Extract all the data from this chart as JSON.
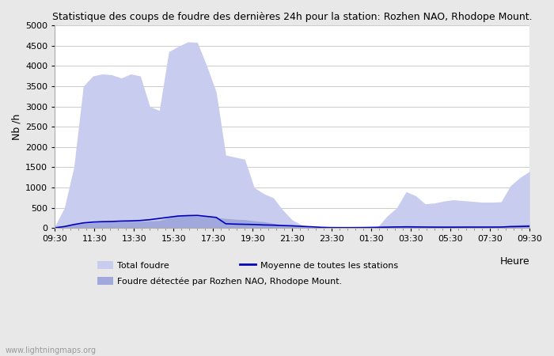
{
  "title": "Statistique des coups de foudre des dernières 24h pour la station: Rozhen NAO, Rhodope Mount.",
  "ylabel": "Nb /h",
  "xlabel_right": "Heure",
  "watermark": "www.lightningmaps.org",
  "ylim": [
    0,
    5000
  ],
  "yticks": [
    0,
    500,
    1000,
    1500,
    2000,
    2500,
    3000,
    3500,
    4000,
    4500,
    5000
  ],
  "xtick_labels": [
    "09:30",
    "11:30",
    "13:30",
    "15:30",
    "17:30",
    "19:30",
    "21:30",
    "23:30",
    "01:30",
    "03:30",
    "05:30",
    "07:30",
    "09:30"
  ],
  "bg_color": "#e8e8e8",
  "plot_bg_color": "#ffffff",
  "total_fill_color": "#c8ccee",
  "detected_fill_color": "#a0a8dc",
  "line_color": "#0000bb",
  "legend_total": "Total foudre",
  "legend_line": "Moyenne de toutes les stations",
  "legend_detected": "Foudre détectée par Rozhen NAO, Rhodope Mount.",
  "total_foudre": [
    50,
    500,
    1500,
    3500,
    3750,
    3800,
    3780,
    3700,
    3800,
    3750,
    3000,
    2900,
    4350,
    4480,
    4590,
    4580,
    4000,
    3350,
    1800,
    1750,
    1700,
    1000,
    850,
    750,
    450,
    200,
    80,
    30,
    20,
    10,
    10,
    10,
    10,
    20,
    30,
    300,
    500,
    900,
    800,
    600,
    620,
    670,
    700,
    680,
    660,
    640,
    640,
    650,
    1050,
    1250,
    1400
  ],
  "detected_foudre": [
    10,
    50,
    100,
    120,
    130,
    150,
    160,
    160,
    170,
    170,
    180,
    190,
    260,
    300,
    310,
    300,
    280,
    260,
    240,
    220,
    210,
    180,
    160,
    120,
    80,
    60,
    40,
    30,
    15,
    8,
    8,
    8,
    10,
    15,
    25,
    40,
    55,
    65,
    60,
    50,
    50,
    50,
    55,
    55,
    55,
    50,
    50,
    50,
    75,
    85,
    95
  ],
  "avg_line": [
    10,
    40,
    90,
    130,
    150,
    160,
    165,
    175,
    180,
    190,
    210,
    240,
    270,
    300,
    310,
    315,
    290,
    265,
    110,
    100,
    95,
    90,
    80,
    75,
    65,
    58,
    45,
    35,
    22,
    15,
    14,
    14,
    15,
    18,
    22,
    26,
    30,
    32,
    30,
    28,
    26,
    25,
    25,
    26,
    27,
    27,
    27,
    28,
    38,
    42,
    48
  ]
}
